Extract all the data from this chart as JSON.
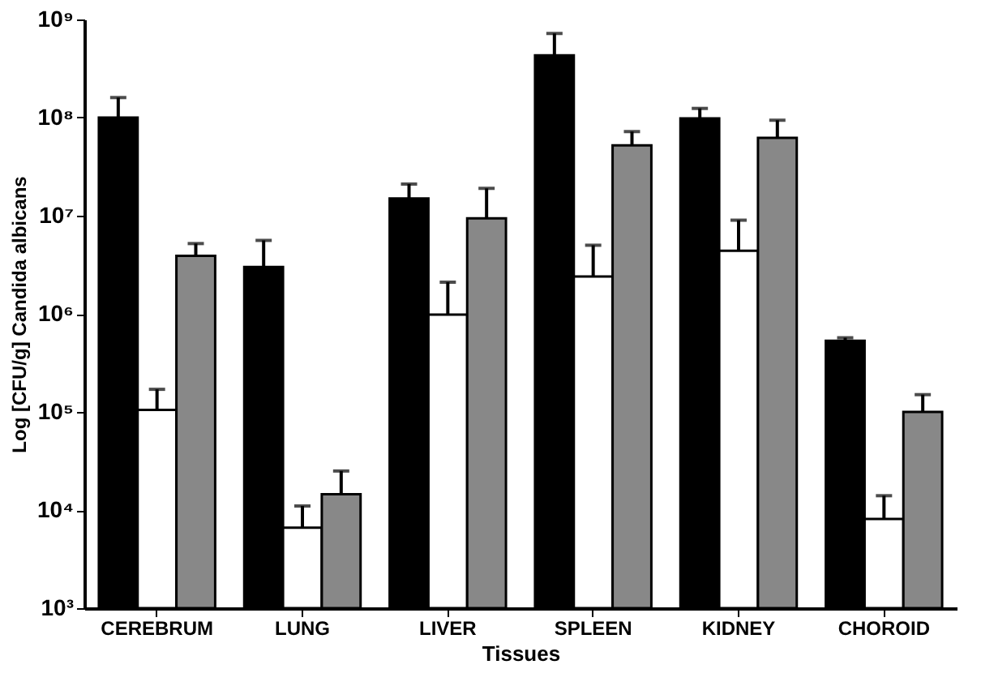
{
  "chart_data": {
    "type": "bar",
    "xlabel": "Tissues",
    "ylabel": "Log [CFU/g] Candida albicans",
    "categories": [
      "CEREBRUM",
      "LUNG",
      "LIVER",
      "SPLEEN",
      "KIDNEY",
      "CHOROID"
    ],
    "series": [
      {
        "color": "#000000",
        "values": [
          100000000,
          3000000,
          15000000,
          430000000,
          98000000,
          530000
        ],
        "errors": [
          [
            100000000,
            160000000
          ],
          [
            3000000,
            5600000
          ],
          [
            15000000,
            21000000
          ],
          [
            430000000,
            720000000
          ],
          [
            98000000,
            124000000
          ],
          [
            530000,
            570000
          ]
        ]
      },
      {
        "color": "#ffffff",
        "values": [
          105000,
          6600,
          980000,
          2400000,
          4400000,
          8100
        ],
        "errors": [
          [
            105000,
            170000
          ],
          [
            6600,
            11000
          ],
          [
            980000,
            2100000
          ],
          [
            2400000,
            5000000
          ],
          [
            4400000,
            9000000
          ],
          [
            8100,
            14000
          ]
        ]
      },
      {
        "color": "#888888",
        "values": [
          3900000,
          14500,
          9400000,
          52000000,
          62000000,
          100000
        ],
        "errors": [
          [
            3900000,
            5200000
          ],
          [
            14500,
            25000
          ],
          [
            9400000,
            19000000
          ],
          [
            52000000,
            72000000
          ],
          [
            62000000,
            94000000
          ],
          [
            100000,
            150000
          ]
        ]
      }
    ],
    "log": "y",
    "ylim": [
      1000,
      1000000000
    ],
    "yticks": [
      {
        "value": 1000,
        "label": "10³"
      },
      {
        "value": 10000,
        "label": "10⁴"
      },
      {
        "value": 100000,
        "label": "10⁵"
      },
      {
        "value": 1000000,
        "label": "10⁶"
      },
      {
        "value": 10000000,
        "label": "10⁷"
      },
      {
        "value": 100000000,
        "label": "10⁸"
      },
      {
        "value": 1000000000,
        "label": "10⁹"
      }
    ],
    "grid": false,
    "legend": false
  }
}
